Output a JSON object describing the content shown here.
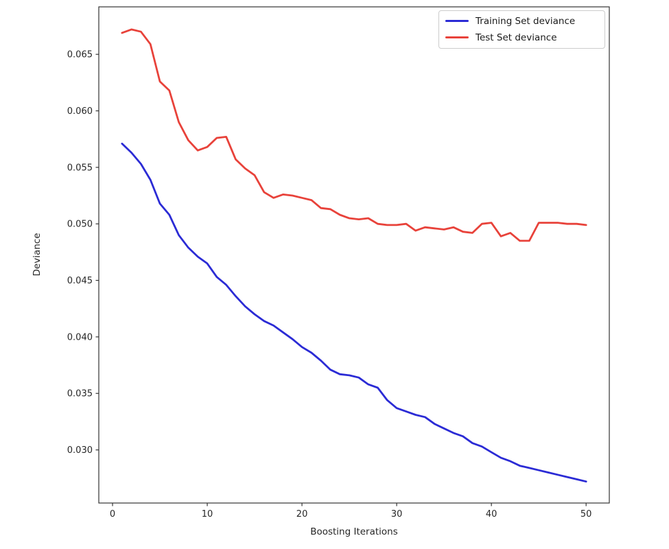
{
  "figure": {
    "background": "#ffffff",
    "spine_color": "#333333",
    "tick_color": "#333333",
    "text_color": "#262626"
  },
  "chart_data": {
    "type": "line",
    "title": "",
    "xlabel": "Boosting Iterations",
    "ylabel": "Deviance",
    "grid": false,
    "legend_position": "upper right",
    "xlim": [
      -1.45,
      52.45
    ],
    "ylim": [
      0.0253,
      0.0692
    ],
    "xticks": [
      0,
      10,
      20,
      30,
      40,
      50
    ],
    "xtick_labels": [
      "0",
      "10",
      "20",
      "30",
      "40",
      "50"
    ],
    "yticks": [
      0.03,
      0.035,
      0.04,
      0.045,
      0.05,
      0.055,
      0.06,
      0.065
    ],
    "ytick_labels": [
      "0.030",
      "0.035",
      "0.040",
      "0.045",
      "0.050",
      "0.055",
      "0.060",
      "0.065"
    ],
    "x": [
      1,
      2,
      3,
      4,
      5,
      6,
      7,
      8,
      9,
      10,
      11,
      12,
      13,
      14,
      15,
      16,
      17,
      18,
      19,
      20,
      21,
      22,
      23,
      24,
      25,
      26,
      27,
      28,
      29,
      30,
      31,
      32,
      33,
      34,
      35,
      36,
      37,
      38,
      39,
      40,
      41,
      42,
      43,
      44,
      45,
      46,
      47,
      48,
      49,
      50
    ],
    "series": [
      {
        "name": "Training Set deviance",
        "color": "#2b2bd5",
        "values": [
          0.0571,
          0.0563,
          0.0553,
          0.0539,
          0.0518,
          0.0508,
          0.049,
          0.0479,
          0.0471,
          0.0465,
          0.0453,
          0.0446,
          0.0436,
          0.0427,
          0.042,
          0.0414,
          0.041,
          0.0404,
          0.0398,
          0.0391,
          0.0386,
          0.0379,
          0.0371,
          0.0367,
          0.0366,
          0.0364,
          0.0358,
          0.0355,
          0.0344,
          0.0337,
          0.0334,
          0.0331,
          0.0329,
          0.0323,
          0.0319,
          0.0315,
          0.0312,
          0.0306,
          0.0303,
          0.0298,
          0.0293,
          0.029,
          0.0286,
          0.0284,
          0.0282,
          0.028,
          0.0278,
          0.0276,
          0.0274,
          0.0272
        ]
      },
      {
        "name": "Test Set deviance",
        "color": "#e8423a",
        "values": [
          0.0669,
          0.0672,
          0.067,
          0.0659,
          0.0626,
          0.0618,
          0.059,
          0.0574,
          0.0565,
          0.0568,
          0.0576,
          0.0577,
          0.0557,
          0.0549,
          0.0543,
          0.0528,
          0.0523,
          0.0526,
          0.0525,
          0.0523,
          0.0521,
          0.0514,
          0.0513,
          0.0508,
          0.0505,
          0.0504,
          0.0505,
          0.05,
          0.0499,
          0.0499,
          0.05,
          0.0494,
          0.0497,
          0.0496,
          0.0495,
          0.0497,
          0.0493,
          0.0492,
          0.05,
          0.0501,
          0.0489,
          0.0492,
          0.0485,
          0.0485,
          0.0501,
          0.0501,
          0.0501,
          0.05,
          0.05,
          0.0499
        ]
      }
    ]
  },
  "legend": {
    "items": [
      {
        "label": "Training Set deviance",
        "color": "#2b2bd5"
      },
      {
        "label": "Test Set deviance",
        "color": "#e8423a"
      }
    ]
  }
}
